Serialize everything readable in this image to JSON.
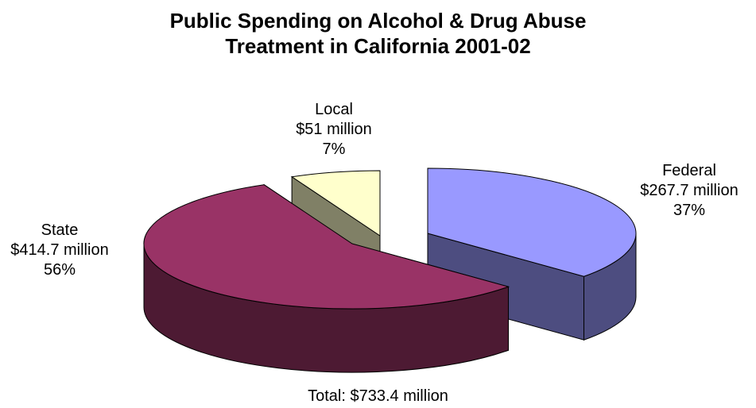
{
  "chart_data": {
    "type": "pie",
    "style": "3d-exploded",
    "title_lines": [
      "Public Spending on Alcohol & Drug Abuse",
      "Treatment in California 2001-02"
    ],
    "slices": [
      {
        "name": "Federal",
        "amount": "$267.7 million",
        "percent": "37%",
        "value": 267.7,
        "color": "#9999ff",
        "side_color": "#4d4d80"
      },
      {
        "name": "State",
        "amount": "$414.7 million",
        "percent": "56%",
        "value": 414.7,
        "color": "#993366",
        "side_color": "#4d1a33"
      },
      {
        "name": "Local",
        "amount": "$51 million",
        "percent": "7%",
        "value": 51,
        "color": "#ffffcc",
        "side_color": "#808066"
      }
    ],
    "total_label": "Total: $733.4 million"
  }
}
